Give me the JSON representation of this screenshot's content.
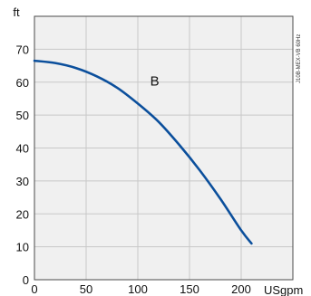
{
  "chart_data": {
    "type": "line",
    "x_unit": "USgpm",
    "y_unit": "ft",
    "xlim": [
      0,
      250
    ],
    "ylim": [
      0,
      80
    ],
    "x_ticks": [
      0,
      50,
      100,
      150,
      200
    ],
    "y_ticks": [
      0,
      10,
      20,
      30,
      40,
      50,
      60,
      70
    ],
    "grid": true,
    "side_note": "J10B-MEX-VB 60Hz",
    "series": [
      {
        "name": "B",
        "color": "#0b4f9c",
        "x": [
          0,
          20,
          40,
          60,
          80,
          100,
          120,
          140,
          160,
          180,
          200,
          210
        ],
        "y": [
          66.5,
          65.8,
          64.3,
          61.8,
          58.3,
          53.5,
          48.0,
          41.0,
          33.2,
          24.5,
          15.0,
          11.0
        ]
      }
    ]
  }
}
